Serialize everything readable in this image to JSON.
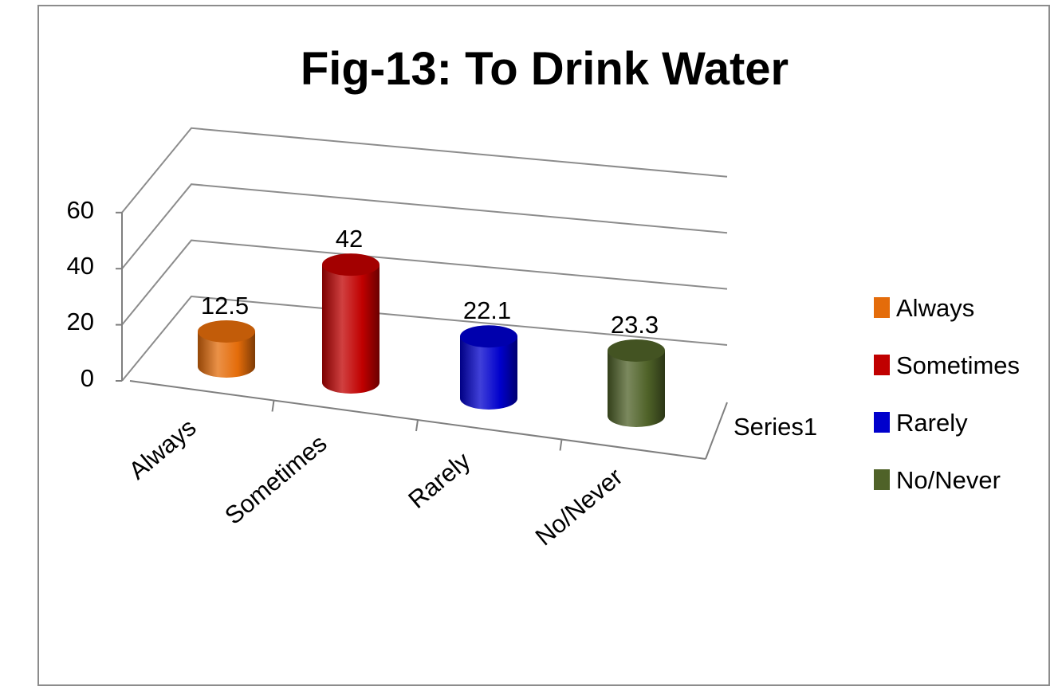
{
  "chart_data": {
    "type": "bar",
    "style": "3d-cylinder",
    "title": "Fig-13: To Drink Water",
    "categories": [
      "Always",
      "Sometimes",
      "Rarely",
      "No/Never"
    ],
    "series": [
      {
        "name": "Series1",
        "values": [
          12.5,
          42,
          22.1,
          23.3
        ]
      }
    ],
    "data_labels": [
      "12.5",
      "42",
      "22.1",
      "23.3"
    ],
    "colors": [
      "#e46c0a",
      "#c00000",
      "#0000cc",
      "#4f6228"
    ],
    "y_ticks": [
      "0",
      "20",
      "40",
      "60"
    ],
    "ylim": [
      0,
      60
    ],
    "grid": true,
    "legend": {
      "position": "right",
      "entries": [
        "Always",
        "Sometimes",
        "Rarely",
        "No/Never"
      ]
    }
  }
}
